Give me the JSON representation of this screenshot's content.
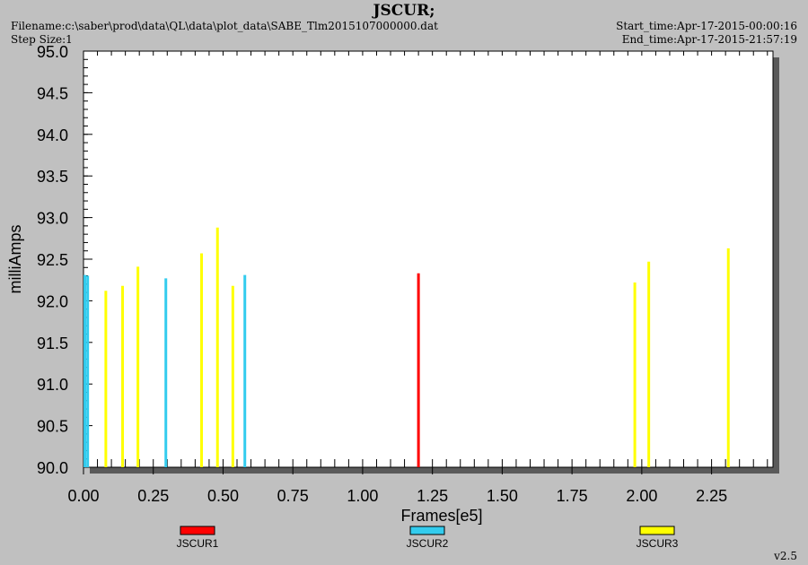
{
  "header": {
    "filename": "Filename:c:\\saber\\prod\\data\\QL\\data\\plot_data\\SABE_Tlm2015107000000.dat",
    "step_size": "Step Size:1",
    "start_time": "Start_time:Apr-17-2015-00:00:16",
    "end_time": "End_time:Apr-17-2015-21:57:19",
    "version": "v2.5"
  },
  "chart_data": {
    "type": "bar",
    "title": "JSCUR;",
    "xlabel": "Frames[e5]",
    "ylabel": "milliAmps",
    "xlim": [
      0.0,
      2.47
    ],
    "ylim": [
      90.0,
      95.0
    ],
    "x_ticks": [
      "0.00",
      "0.25",
      "0.50",
      "0.75",
      "1.00",
      "1.25",
      "1.50",
      "1.75",
      "2.00",
      "2.25"
    ],
    "x_tick_values": [
      0.0,
      0.25,
      0.5,
      0.75,
      1.0,
      1.25,
      1.5,
      1.75,
      2.0,
      2.25
    ],
    "y_ticks": [
      "90.0",
      "90.5",
      "91.0",
      "91.5",
      "92.0",
      "92.5",
      "93.0",
      "93.5",
      "94.0",
      "94.5",
      "95.0"
    ],
    "y_tick_values": [
      90.0,
      90.5,
      91.0,
      91.5,
      92.0,
      92.5,
      93.0,
      93.5,
      94.0,
      94.5,
      95.0
    ],
    "legend_position": "bottom",
    "series": [
      {
        "name": "JSCUR1",
        "color": "#ff0000",
        "points": [
          {
            "x": 1.2,
            "y": 92.33
          }
        ]
      },
      {
        "name": "JSCUR2",
        "color": "#33ccee",
        "points": [
          {
            "x": 0.005,
            "y": 92.31
          },
          {
            "x": 0.015,
            "y": 92.3
          },
          {
            "x": 0.295,
            "y": 92.27
          },
          {
            "x": 0.578,
            "y": 92.31
          }
        ]
      },
      {
        "name": "JSCUR3",
        "color": "#ffff00",
        "points": [
          {
            "x": 0.08,
            "y": 92.12
          },
          {
            "x": 0.14,
            "y": 92.18
          },
          {
            "x": 0.195,
            "y": 92.41
          },
          {
            "x": 0.423,
            "y": 92.57
          },
          {
            "x": 0.48,
            "y": 92.88
          },
          {
            "x": 0.535,
            "y": 92.18
          },
          {
            "x": 1.975,
            "y": 92.22
          },
          {
            "x": 2.025,
            "y": 92.47
          },
          {
            "x": 2.31,
            "y": 92.63
          }
        ]
      }
    ]
  }
}
